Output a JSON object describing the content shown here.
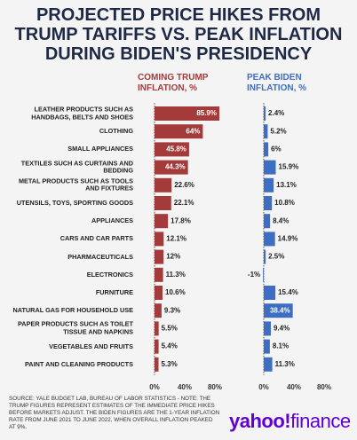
{
  "title": "PROJECTED PRICE HIKES FROM TRUMP TARIFFS VS. PEAK INFLATION DURING BIDEN'S PRESIDENCY",
  "chart_data": {
    "type": "bar",
    "orientation": "horizontal",
    "categories": [
      "LEATHER PRODUCTS SUCH AS HANDBAGS, BELTS AND SHOES",
      "CLOTHING",
      "SMALL APPLIANCES",
      "TEXTILES SUCH AS CURTAINS AND BEDDING",
      "METAL PRODUCTS SUCH AS TOOLS AND FIXTURES",
      "UTENSILS, TOYS, SPORTING GOODS",
      "APPLIANCES",
      "CARS AND CAR PARTS",
      "PHARMACEUTICALS",
      "ELECTRONICS",
      "FURNITURE",
      "NATURAL GAS FOR HOUSEHOLD USE",
      "PAPER PRODUCTS SUCH AS TOILET TISSUE AND NAPKINS",
      "VEGETABLES AND FRUITS",
      "PAINT AND CLEANING PRODUCTS"
    ],
    "series": [
      {
        "name": "COMING TRUMP INFLATION, %",
        "color": "#a33b3b",
        "values": [
          85.9,
          64,
          45.8,
          44.3,
          22.6,
          22.1,
          17.8,
          12.1,
          12,
          11.3,
          10.6,
          9.3,
          5.5,
          5.4,
          5.3
        ],
        "value_labels": [
          "85.9%",
          "64%",
          "45.8%",
          "44.3%",
          "22.6%",
          "22.1%",
          "17.8%",
          "12.1%",
          "12%",
          "11.3%",
          "10.6%",
          "9.3%",
          "5.5%",
          "5.4%",
          "5.3%"
        ]
      },
      {
        "name": "PEAK BIDEN INFLATION, %",
        "color": "#3e6ec4",
        "values": [
          2.4,
          5.2,
          6,
          15.9,
          13.1,
          10.8,
          8.4,
          14.9,
          2.5,
          -1,
          15.4,
          38.4,
          9.4,
          8.1,
          11.3
        ],
        "value_labels": [
          "2.4%",
          "5.2%",
          "6%",
          "15.9%",
          "13.1%",
          "10.8%",
          "8.4%",
          "14.9%",
          "2.5%",
          "-1%",
          "15.4%",
          "38.4%",
          "9.4%",
          "8.1%",
          "11.3%"
        ]
      }
    ],
    "xlim": [
      -5,
      95
    ],
    "xticks": [
      {
        "value": 0,
        "label": "0%"
      },
      {
        "value": 40,
        "label": "40%"
      },
      {
        "value": 80,
        "label": "80%"
      }
    ]
  },
  "source": "SOURCE: YALE BUDGET LAB, BUREAU OF LABOR STATISTICS - NOTE: THE TRUMP FIGURES REPRESENT ESTIMATES OF THE IMMEDIATE PRICE HIKES BEFORE MARKETS ADJUST. THE BIDEN FIGURES ARE THE 1-YEAR INFLATION RATE FROM JUNE 2021 TO JUNE 2022, WHEN OVERALL INFLATION PEAKED AT 9%.",
  "logo": {
    "brand": "yahoo!",
    "product": "finance"
  }
}
